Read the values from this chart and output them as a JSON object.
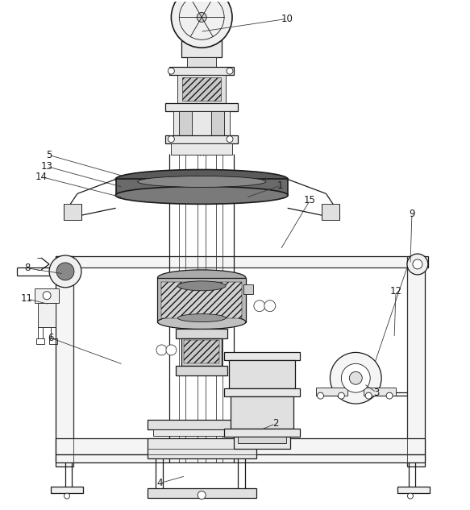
{
  "bg_color": "#ffffff",
  "lc": "#3a3a3a",
  "lc2": "#1a1a1a",
  "fig_width": 5.83,
  "fig_height": 6.33,
  "labels_data": [
    [
      1,
      305,
      245,
      348,
      230
    ],
    [
      2,
      322,
      535,
      342,
      527
    ],
    [
      3,
      452,
      477,
      468,
      488
    ],
    [
      4,
      230,
      592,
      198,
      601
    ],
    [
      5,
      152,
      218,
      60,
      192
    ],
    [
      6,
      152,
      453,
      62,
      420
    ],
    [
      8,
      78,
      340,
      33,
      333
    ],
    [
      9,
      510,
      328,
      512,
      265
    ],
    [
      10,
      248,
      38,
      356,
      22
    ],
    [
      11,
      60,
      378,
      32,
      371
    ],
    [
      12,
      490,
      420,
      492,
      362
    ],
    [
      13,
      152,
      232,
      57,
      206
    ],
    [
      14,
      152,
      245,
      50,
      219
    ],
    [
      15,
      348,
      310,
      385,
      248
    ]
  ]
}
